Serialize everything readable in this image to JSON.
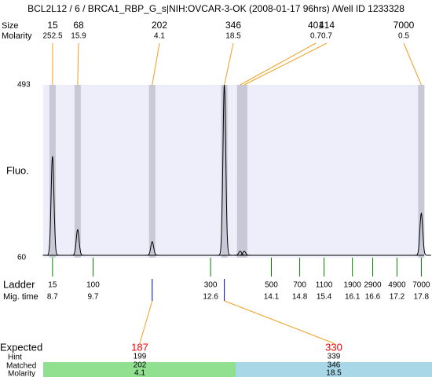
{
  "chart_data": {
    "type": "electropherogram",
    "title": "BCL2L12 / 6 / BRCA1_RBP_G_s|NIH:OVCAR-3-OK (2008-01-17 96hrs) /Well ID 1233328",
    "size_label": "Size",
    "molarity_label": "Molarity",
    "y_label": "Fluo.",
    "ylim": [
      60,
      493
    ],
    "yticks": [
      60,
      493
    ],
    "xlim": [
      8.47,
      17.87
    ],
    "baseline": 66,
    "peaks": [
      {
        "size": 15,
        "molarity": 252.5,
        "time": 8.7,
        "height": 314
      },
      {
        "size": 68,
        "molarity": 15.9,
        "time": 9.32,
        "height": 130
      },
      {
        "size": 202,
        "molarity": 4.1,
        "time": 11.16,
        "height": 100
      },
      {
        "size": 346,
        "molarity": 18.5,
        "time": 12.94,
        "height": 493
      },
      {
        "size": 401,
        "molarity": 0.7,
        "time": 13.33,
        "height": 76
      },
      {
        "size": 414,
        "molarity": 0.7,
        "time": 13.43,
        "height": 76
      },
      {
        "size": 7000,
        "molarity": 0.5,
        "time": 17.8,
        "height": 171
      }
    ],
    "ladder_label": "Ladder",
    "time_label": "Mig. time",
    "ladder": {
      "sizes": [
        15,
        100,
        300,
        500,
        700,
        1100,
        1900,
        2900,
        4900,
        7000
      ],
      "times": [
        8.7,
        9.7,
        12.6,
        14.1,
        14.8,
        15.4,
        16.1,
        16.6,
        17.2,
        17.8
      ]
    },
    "expected_label": "Expected",
    "hint_label": "Hint",
    "matched_label": "Matched",
    "matched_molarity_label": "Molarity",
    "expected": [
      {
        "expected": 187,
        "hint": 199,
        "matched": 202,
        "molarity": 4.1,
        "time": 11.16
      },
      {
        "expected": 330,
        "hint": 339,
        "matched": 346,
        "molarity": 18.5,
        "time": 12.94
      }
    ]
  }
}
